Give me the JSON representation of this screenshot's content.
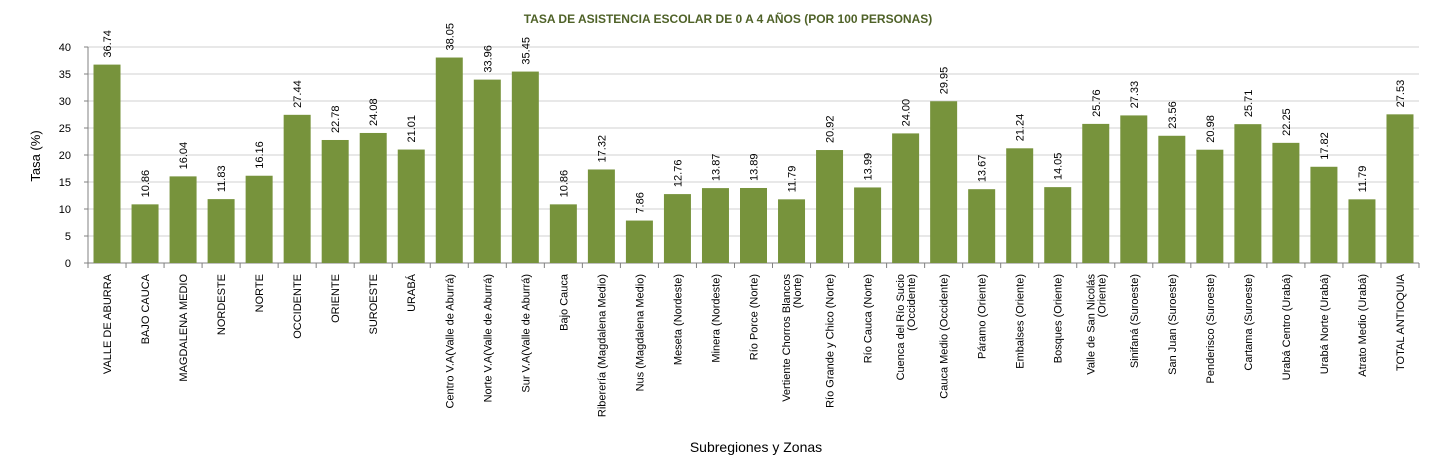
{
  "chart_data": {
    "type": "bar",
    "title": "TASA DE ASISTENCIA ESCOLAR DE 0 A 4 AÑOS (POR 100 PERSONAS)",
    "xlabel": "Subregiones y Zonas",
    "ylabel": "Tasa (%)",
    "ylim": [
      0,
      40
    ],
    "yticks": [
      0,
      5,
      10,
      15,
      20,
      25,
      30,
      35,
      40
    ],
    "grid": true,
    "bar_color": "#77933C",
    "title_color": "#4F6228",
    "categories": [
      [
        "VALLE DE ABURRA"
      ],
      [
        "BAJO CAUCA"
      ],
      [
        "MAGDALENA MEDIO"
      ],
      [
        "NORDESTE"
      ],
      [
        "NORTE"
      ],
      [
        "OCCIDENTE"
      ],
      [
        "ORIENTE"
      ],
      [
        "SUROESTE"
      ],
      [
        "URABÁ"
      ],
      [
        "Centro V.A(Valle de Aburrá)"
      ],
      [
        "Norte V.A(Valle de Aburrá)"
      ],
      [
        "Sur  V.A(Valle de Aburrá)"
      ],
      [
        "Bajo Cauca"
      ],
      [
        "Riberería  (Magdalena Medio)"
      ],
      [
        "Nus  (Magdalena Medio)"
      ],
      [
        "Meseta  (Nordeste)"
      ],
      [
        "Minera  (Nordeste)"
      ],
      [
        "Río Porce   (Norte)"
      ],
      [
        "Vertiente Chorros Blancos",
        "(Norte)"
      ],
      [
        "Río Grande y Chico  (Norte)"
      ],
      [
        "Río Cauca  (Norte)"
      ],
      [
        "Cuenca del Río Sucio",
        "(Occidente)"
      ],
      [
        "Cauca Medio  (Occidente)"
      ],
      [
        "Páramo   (Oriente)"
      ],
      [
        "Embalses  (Oriente)"
      ],
      [
        "Bosques  (Oriente)"
      ],
      [
        "Valle de San Nicolás",
        "(Oriente)"
      ],
      [
        "Sinifaná  (Suroeste)"
      ],
      [
        "San Juan  (Suroeste)"
      ],
      [
        "Penderisco  (Suroeste)"
      ],
      [
        "Cartama  (Suroeste)"
      ],
      [
        "Urabá Centro  (Urabá)"
      ],
      [
        "Urabá Norte  (Urabá)"
      ],
      [
        "Atrato Medio  (Urabá)"
      ],
      [
        "TOTAL ANTIOQUIA"
      ]
    ],
    "values": [
      36.74,
      10.86,
      16.04,
      11.83,
      16.16,
      27.44,
      22.78,
      24.08,
      21.01,
      38.05,
      33.96,
      35.45,
      10.86,
      17.32,
      7.86,
      12.76,
      13.87,
      13.89,
      11.79,
      20.92,
      13.99,
      24.0,
      29.95,
      13.67,
      21.24,
      14.05,
      25.76,
      27.33,
      23.56,
      20.98,
      25.71,
      22.25,
      17.82,
      11.79,
      27.53
    ],
    "value_labels": [
      "36.74",
      "10.86",
      "16.04",
      "11.83",
      "16.16",
      "27.44",
      "22.78",
      "24.08",
      "21.01",
      "38.05",
      "33.96",
      "35.45",
      "10.86",
      "17.32",
      "7.86",
      "12.76",
      "13.87",
      "13.89",
      "11.79",
      "20.92",
      "13.99",
      "24.00",
      "29.95",
      "13.67",
      "21.24",
      "14.05",
      "25.76",
      "27.33",
      "23.56",
      "20.98",
      "25.71",
      "22.25",
      "17.82",
      "11.79",
      "27.53"
    ]
  }
}
